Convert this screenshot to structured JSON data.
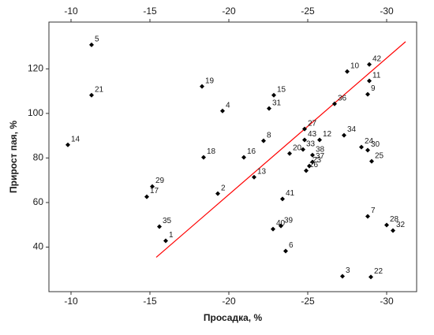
{
  "chart_data": {
    "type": "scatter",
    "x_label": "Просадка, %",
    "y_label": "Прирост пая, %",
    "xlim": [
      -8.6,
      -31.9
    ],
    "ylim": [
      20,
      141
    ],
    "xticks": [
      -10,
      -15,
      -20,
      -25,
      -30
    ],
    "yticks": [
      40,
      60,
      80,
      100,
      120
    ],
    "color": "#000000",
    "point_labels": [
      "5",
      "21",
      "14",
      "29",
      "17",
      "35",
      "1",
      "19",
      "4",
      "18",
      "2",
      "16",
      "13",
      "15",
      "31",
      "8",
      "27",
      "43",
      "33",
      "20",
      "12",
      "38",
      "37",
      "23",
      "26",
      "41",
      "40",
      "39",
      "6",
      "36",
      "10",
      "42",
      "11",
      "9",
      "34",
      "24",
      "30",
      "25",
      "7",
      "28",
      "32",
      "3",
      "22"
    ],
    "x": [
      -11.3,
      -11.3,
      -9.8,
      -15.15,
      -14.8,
      -15.6,
      -16.0,
      -18.3,
      -19.6,
      -18.4,
      -19.3,
      -20.95,
      -21.6,
      -22.85,
      -22.55,
      -22.2,
      -24.8,
      -24.8,
      -24.7,
      -23.85,
      -25.75,
      -25.3,
      -25.3,
      -25.1,
      -24.9,
      -23.4,
      -22.8,
      -23.3,
      -23.6,
      -26.7,
      -27.5,
      -28.9,
      -28.9,
      -28.8,
      -27.3,
      -28.4,
      -28.8,
      -29.05,
      -28.8,
      -30.0,
      -30.4,
      -27.2,
      -29.0
    ],
    "values": [
      130.8,
      108.2,
      85.9,
      67.2,
      62.6,
      49.2,
      42.8,
      112.1,
      101.1,
      80.3,
      64.0,
      80.3,
      71.4,
      108.2,
      102.2,
      87.7,
      93.0,
      88.1,
      83.8,
      82.0,
      88.1,
      81.3,
      78.2,
      76.4,
      74.3,
      61.6,
      48.1,
      49.5,
      38.2,
      104.3,
      118.8,
      122.0,
      114.6,
      108.6,
      90.2,
      84.9,
      83.5,
      78.5,
      53.8,
      49.9,
      47.4,
      26.9,
      26.6
    ],
    "trend_line": {
      "color": "#ff0000",
      "x": [
        -15.4,
        -31.2
      ],
      "values": [
        35.4,
        132.2
      ]
    }
  }
}
